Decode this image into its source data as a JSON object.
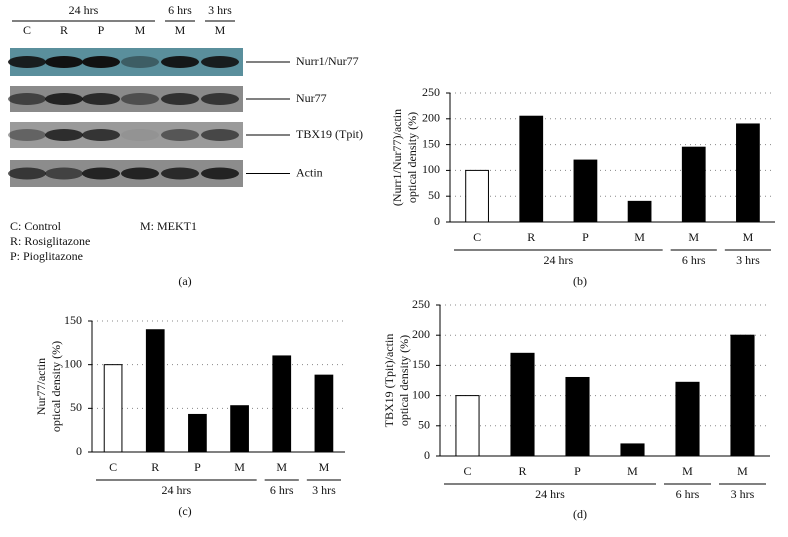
{
  "panel_a": {
    "lanes": [
      "C",
      "R",
      "P",
      "M",
      "M",
      "M"
    ],
    "lane_groups": [
      "24 hrs",
      "24 hrs",
      "24 hrs",
      "24 hrs",
      "6 hrs",
      "3 hrs"
    ],
    "bands": [
      "Nurr1/Nur77",
      "Nur77",
      "TBX19 (Tpit)",
      "Actin"
    ],
    "legend": [
      "C: Control",
      "M: MEKT1",
      "R: Rosiglitazone",
      "P: Pioglitazone"
    ],
    "caption": "(a)"
  },
  "chart_data": [
    {
      "type": "bar",
      "caption": "(b)",
      "ylabel": [
        "(Nurr1/Nur77)/actin",
        "optical density (%)"
      ],
      "categories": [
        "C",
        "R",
        "P",
        "M",
        "M",
        "M"
      ],
      "category_groups": [
        "24 hrs",
        "24 hrs",
        "24 hrs",
        "24 hrs",
        "6 hrs",
        "3 hrs"
      ],
      "values": [
        100,
        205,
        120,
        40,
        145,
        190
      ],
      "colors": [
        "#ffffff",
        "#000000",
        "#000000",
        "#000000",
        "#000000",
        "#000000"
      ],
      "ylim": [
        0,
        250
      ],
      "yticks": [
        0,
        50,
        100,
        150,
        200,
        250
      ],
      "grid": true
    },
    {
      "type": "bar",
      "caption": "(c)",
      "ylabel": [
        "Nur77/actin",
        "optical density (%)"
      ],
      "categories": [
        "C",
        "R",
        "P",
        "M",
        "M",
        "M"
      ],
      "category_groups": [
        "24 hrs",
        "24 hrs",
        "24 hrs",
        "24 hrs",
        "6 hrs",
        "3 hrs"
      ],
      "values": [
        100,
        140,
        43,
        53,
        110,
        88
      ],
      "colors": [
        "#ffffff",
        "#000000",
        "#000000",
        "#000000",
        "#000000",
        "#000000"
      ],
      "ylim": [
        0,
        150
      ],
      "yticks": [
        0,
        50,
        100,
        150
      ],
      "grid": true
    },
    {
      "type": "bar",
      "caption": "(d)",
      "ylabel": [
        "TBX19 (Tpit)/actin",
        "optical density (%)"
      ],
      "categories": [
        "C",
        "R",
        "P",
        "M",
        "M",
        "M"
      ],
      "category_groups": [
        "24 hrs",
        "24 hrs",
        "24 hrs",
        "24 hrs",
        "6 hrs",
        "3 hrs"
      ],
      "values": [
        100,
        170,
        130,
        20,
        122,
        200
      ],
      "colors": [
        "#ffffff",
        "#000000",
        "#000000",
        "#000000",
        "#000000",
        "#000000"
      ],
      "ylim": [
        0,
        250
      ],
      "yticks": [
        0,
        50,
        100,
        150,
        200,
        250
      ],
      "grid": true
    }
  ]
}
